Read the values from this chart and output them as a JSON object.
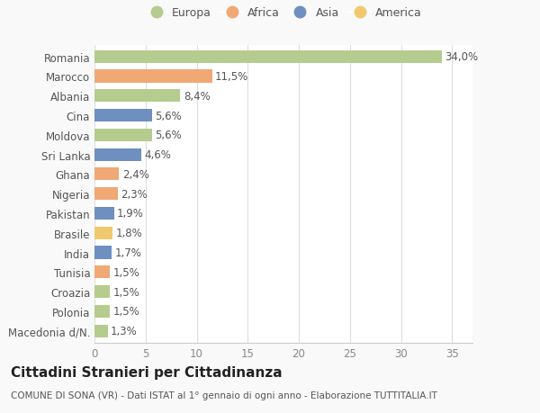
{
  "countries": [
    "Romania",
    "Marocco",
    "Albania",
    "Cina",
    "Moldova",
    "Sri Lanka",
    "Ghana",
    "Nigeria",
    "Pakistan",
    "Brasile",
    "India",
    "Tunisia",
    "Croazia",
    "Polonia",
    "Macedonia d/N."
  ],
  "values": [
    34.0,
    11.5,
    8.4,
    5.6,
    5.6,
    4.6,
    2.4,
    2.3,
    1.9,
    1.8,
    1.7,
    1.5,
    1.5,
    1.5,
    1.3
  ],
  "labels": [
    "34,0%",
    "11,5%",
    "8,4%",
    "5,6%",
    "5,6%",
    "4,6%",
    "2,4%",
    "2,3%",
    "1,9%",
    "1,8%",
    "1,7%",
    "1,5%",
    "1,5%",
    "1,5%",
    "1,3%"
  ],
  "regions": [
    "Europa",
    "Africa",
    "Europa",
    "Asia",
    "Europa",
    "Asia",
    "Africa",
    "Africa",
    "Asia",
    "America",
    "Asia",
    "Africa",
    "Europa",
    "Europa",
    "Europa"
  ],
  "region_colors": {
    "Europa": "#b5cc8e",
    "Africa": "#f0a875",
    "Asia": "#6e8fbf",
    "America": "#f0c96e"
  },
  "legend_order": [
    "Europa",
    "Africa",
    "Asia",
    "America"
  ],
  "xlim": [
    0,
    37
  ],
  "xticks": [
    0,
    5,
    10,
    15,
    20,
    25,
    30,
    35
  ],
  "title": "Cittadini Stranieri per Cittadinanza",
  "subtitle": "COMUNE DI SONA (VR) - Dati ISTAT al 1° gennaio di ogni anno - Elaborazione TUTTITALIA.IT",
  "background_color": "#f9f9f9",
  "plot_bg_color": "#ffffff",
  "grid_color": "#dddddd",
  "bar_height": 0.65,
  "title_fontsize": 11,
  "subtitle_fontsize": 7.5,
  "tick_fontsize": 8.5,
  "label_fontsize": 8.5
}
